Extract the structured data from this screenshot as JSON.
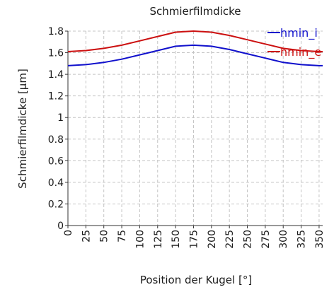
{
  "chart_data": {
    "type": "line",
    "title": "Schmierfilmdicke",
    "xlabel": "Position der Kugel [°]",
    "ylabel": "Schmierfilmdicke [µm]",
    "xlim": [
      0,
      355
    ],
    "ylim": [
      0,
      1.8
    ],
    "xticks": [
      "0",
      "25",
      "50",
      "75",
      "100",
      "125",
      "150",
      "175",
      "200",
      "225",
      "250",
      "275",
      "300",
      "325",
      "350"
    ],
    "yticks": [
      "0",
      "0.2",
      "0.4",
      "0.6",
      "0.8",
      "1",
      "1.2",
      "1.4",
      "1.6",
      "1.8"
    ],
    "grid": true,
    "legend_position": "top-right",
    "x": [
      0,
      25,
      50,
      75,
      100,
      125,
      150,
      175,
      200,
      225,
      250,
      275,
      300,
      325,
      350,
      355
    ],
    "series": [
      {
        "name": "hmin_i",
        "color": "#1010cc",
        "values": [
          1.48,
          1.49,
          1.51,
          1.54,
          1.58,
          1.62,
          1.66,
          1.67,
          1.66,
          1.63,
          1.59,
          1.55,
          1.51,
          1.49,
          1.48,
          1.48
        ]
      },
      {
        "name": "hmin_e",
        "color": "#cc1010",
        "values": [
          1.61,
          1.62,
          1.64,
          1.67,
          1.71,
          1.75,
          1.79,
          1.8,
          1.79,
          1.76,
          1.72,
          1.68,
          1.64,
          1.62,
          1.61,
          1.61
        ]
      }
    ]
  }
}
